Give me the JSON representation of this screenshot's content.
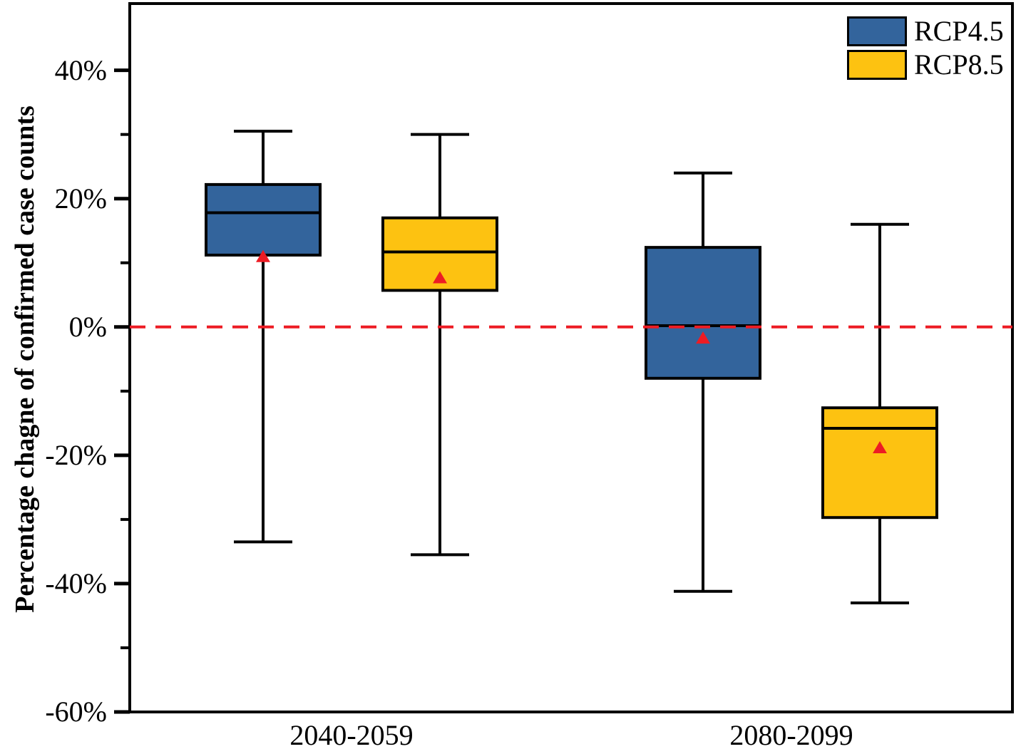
{
  "chart_data": {
    "type": "boxplot",
    "title": "",
    "ylabel": "Percentage chagne of confirmed case counts",
    "xlabel": "",
    "ylim": [
      -60,
      50.4
    ],
    "grid": false,
    "yticks_major": [
      40,
      20,
      0,
      -20,
      -40,
      -60
    ],
    "ytick_labels": [
      "40%",
      "20%",
      "0%",
      "-20%",
      "-40%",
      "-60%"
    ],
    "yticks_minor": [
      30,
      10,
      -10,
      -30,
      -50
    ],
    "categories": [
      "2040-2059",
      "2080-2099"
    ],
    "series": [
      {
        "name": "RCP4.5",
        "color": "#33649C",
        "boxes": [
          {
            "category": "2040-2059",
            "whisker_low": -33.5,
            "q1": 11.2,
            "median": 17.8,
            "q3": 22.2,
            "whisker_high": 30.5,
            "mean": 11.0
          },
          {
            "category": "2080-2099",
            "whisker_low": -41.2,
            "q1": -8.0,
            "median": 0.2,
            "q3": 12.4,
            "whisker_high": 24.0,
            "mean": -1.7
          }
        ]
      },
      {
        "name": "RCP8.5",
        "color": "#FDC211",
        "boxes": [
          {
            "category": "2040-2059",
            "whisker_low": -35.5,
            "q1": 5.7,
            "median": 11.7,
            "q3": 17.0,
            "whisker_high": 30.0,
            "mean": 7.7
          },
          {
            "category": "2080-2099",
            "whisker_low": -43.0,
            "q1": -29.7,
            "median": -15.8,
            "q3": -12.6,
            "whisker_high": 16.0,
            "mean": -18.8
          }
        ]
      }
    ],
    "reference_line": {
      "y": 0,
      "style": "dashed",
      "color": "#ED1C24"
    },
    "mean_marker": {
      "shape": "triangle-up",
      "color": "#ED1C24"
    },
    "legend": {
      "position": "top-right",
      "entries": [
        {
          "label": "RCP4.5",
          "color": "#33649C"
        },
        {
          "label": "RCP8.5",
          "color": "#FDC211"
        }
      ]
    },
    "axis_color": "#000000"
  }
}
